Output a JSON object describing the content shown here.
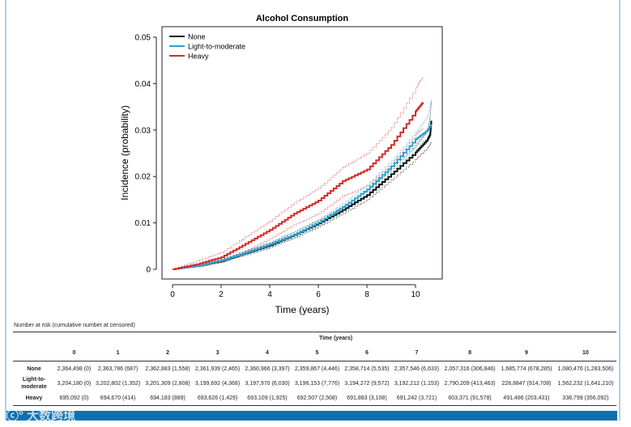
{
  "chart_data": {
    "type": "line",
    "title": "Alcohol Consumption",
    "xlabel": "Time (years)",
    "ylabel": "Incidence (probability)",
    "xlim": [
      0,
      10.7
    ],
    "ylim": [
      0,
      0.05
    ],
    "xticks": [
      "0",
      "2",
      "4",
      "6",
      "8",
      "10"
    ],
    "yticks": [
      "0",
      "0.01",
      "0.02",
      "0.03",
      "0.04",
      "0.05"
    ],
    "legend_position": "top-left",
    "series": [
      {
        "name": "None",
        "color": "#111111",
        "x": [
          0,
          1,
          2,
          3,
          4,
          5,
          6,
          7,
          8,
          9,
          10,
          10.5,
          10.6,
          10.65
        ],
        "y": [
          0,
          0.0007,
          0.0018,
          0.0035,
          0.0052,
          0.0074,
          0.0099,
          0.0128,
          0.016,
          0.0205,
          0.0252,
          0.028,
          0.029,
          0.032
        ],
        "lower": [
          0,
          0.0005,
          0.0015,
          0.0031,
          0.0047,
          0.0068,
          0.0092,
          0.012,
          0.015,
          0.0193,
          0.0237,
          0.0262,
          0.0268,
          0.0275
        ],
        "upper": [
          0,
          0.0009,
          0.0021,
          0.0039,
          0.0057,
          0.0081,
          0.0106,
          0.0136,
          0.017,
          0.0217,
          0.0267,
          0.03,
          0.033,
          0.036
        ]
      },
      {
        "name": "Light-to-moderate",
        "color": "#2aa3d0",
        "x": [
          0,
          1,
          2,
          3,
          4,
          5,
          6,
          7,
          8,
          9,
          10,
          10.5,
          10.65
        ],
        "y": [
          0,
          0.0007,
          0.0019,
          0.0036,
          0.0054,
          0.0075,
          0.0101,
          0.0134,
          0.0172,
          0.0222,
          0.028,
          0.03,
          0.0312
        ],
        "lower": [
          0,
          0.0005,
          0.0016,
          0.0032,
          0.0049,
          0.0069,
          0.0094,
          0.0126,
          0.0162,
          0.021,
          0.0265,
          0.0283,
          0.0292
        ],
        "upper": [
          0,
          0.0009,
          0.0022,
          0.004,
          0.0059,
          0.0081,
          0.0108,
          0.0142,
          0.0182,
          0.0234,
          0.0295,
          0.033,
          0.0365
        ]
      },
      {
        "name": "Heavy",
        "color": "#d42a2a",
        "x": [
          0,
          1,
          2,
          3,
          4,
          5,
          6,
          7,
          8,
          9,
          10,
          10.3
        ],
        "y": [
          0,
          0.0011,
          0.0026,
          0.0055,
          0.0085,
          0.012,
          0.0148,
          0.019,
          0.0215,
          0.0268,
          0.034,
          0.036
        ],
        "lower": [
          0,
          0.0005,
          0.0016,
          0.004,
          0.0066,
          0.0096,
          0.012,
          0.0158,
          0.018,
          0.0228,
          0.029,
          0.0305
        ],
        "upper": [
          0,
          0.0018,
          0.0036,
          0.007,
          0.0104,
          0.0143,
          0.0175,
          0.022,
          0.025,
          0.0305,
          0.039,
          0.0415
        ]
      }
    ]
  },
  "risk_table": {
    "caption": "Number at risk (cumulative number at censored)",
    "header": "Time (years)",
    "columns": [
      "0",
      "1",
      "2",
      "3",
      "4",
      "5",
      "6",
      "7",
      "8",
      "9",
      "10"
    ],
    "rows": [
      {
        "label": "None",
        "values": [
          "2,364,498 (0)",
          "2,363,786 (687)",
          "2,362,883 (1,558)",
          "2,361,939 (2,465)",
          "2,360,966 (3,397)",
          "2,359,867 (4,446)",
          "2,358,714 (5,535)",
          "2,357,546 (6,633)",
          "2,057,316 (306,846)",
          "1,685,774 (678,285)",
          "1,080,476 (1,283,506)"
        ]
      },
      {
        "label": "Light-to-moderate",
        "values": [
          "3,204,180 (0)",
          "3,202,802 (1,352)",
          "3,201,309 (2,808)",
          "3,199,692 (4,368)",
          "3,197,970 (6,030)",
          "3,196,153 (7,776)",
          "3,194,272 (9,572)",
          "3,192,212 (1,153)",
          "2,790,209 (413,463)",
          "228,8847 (914,708)",
          "1,562,232 (1,641,210)"
        ]
      },
      {
        "label": "Heavy",
        "values": [
          "695,092 (0)",
          "694,670 (414)",
          "694,183 (889)",
          "693,626 (1,429)",
          "693,109 (1,925)",
          "692,507 (2,508)",
          "691,883 (3,108)",
          "691,242 (3,721)",
          "603,371 (91,578)",
          "491,486 (203,431)",
          "338,799 (356,092)"
        ]
      }
    ]
  },
  "watermark": "大数跨境"
}
